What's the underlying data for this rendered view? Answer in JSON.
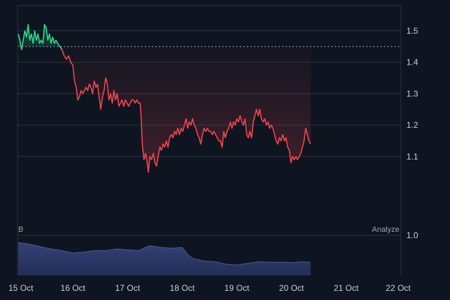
{
  "chart_data": {
    "type": "area",
    "x": [
      "15 Oct",
      "16 Oct",
      "17 Oct",
      "18 Oct",
      "19 Oct",
      "20 Oct",
      "21 Oct",
      "22 Oct"
    ],
    "baseline": 1.45,
    "ylim": [
      0.95,
      1.58
    ],
    "y_ticks": [
      "1.5",
      "1.4",
      "1.3",
      "1.2",
      "1.1",
      "1.0"
    ],
    "price": [
      [
        0.0,
        1.49
      ],
      [
        0.03,
        1.47
      ],
      [
        0.06,
        1.44
      ],
      [
        0.09,
        1.47
      ],
      [
        0.12,
        1.5
      ],
      [
        0.15,
        1.48
      ],
      [
        0.18,
        1.52
      ],
      [
        0.21,
        1.47
      ],
      [
        0.24,
        1.49
      ],
      [
        0.27,
        1.46
      ],
      [
        0.3,
        1.5
      ],
      [
        0.33,
        1.47
      ],
      [
        0.36,
        1.49
      ],
      [
        0.39,
        1.46
      ],
      [
        0.42,
        1.47
      ],
      [
        0.45,
        1.46
      ],
      [
        0.48,
        1.52
      ],
      [
        0.51,
        1.51
      ],
      [
        0.54,
        1.47
      ],
      [
        0.57,
        1.49
      ],
      [
        0.6,
        1.46
      ],
      [
        0.63,
        1.48
      ],
      [
        0.66,
        1.46
      ],
      [
        0.69,
        1.47
      ],
      [
        0.72,
        1.46
      ],
      [
        0.76,
        1.45
      ],
      [
        0.8,
        1.44
      ],
      [
        0.84,
        1.42
      ],
      [
        0.88,
        1.41
      ],
      [
        0.92,
        1.42
      ],
      [
        0.96,
        1.4
      ],
      [
        1.0,
        1.39
      ],
      [
        1.03,
        1.34
      ],
      [
        1.06,
        1.32
      ],
      [
        1.09,
        1.28
      ],
      [
        1.12,
        1.29
      ],
      [
        1.15,
        1.31
      ],
      [
        1.18,
        1.3
      ],
      [
        1.21,
        1.31
      ],
      [
        1.24,
        1.32
      ],
      [
        1.27,
        1.31
      ],
      [
        1.3,
        1.33
      ],
      [
        1.33,
        1.32
      ],
      [
        1.36,
        1.3
      ],
      [
        1.39,
        1.34
      ],
      [
        1.42,
        1.32
      ],
      [
        1.45,
        1.33
      ],
      [
        1.48,
        1.29
      ],
      [
        1.51,
        1.25
      ],
      [
        1.54,
        1.29
      ],
      [
        1.57,
        1.31
      ],
      [
        1.6,
        1.35
      ],
      [
        1.63,
        1.33
      ],
      [
        1.66,
        1.28
      ],
      [
        1.69,
        1.3
      ],
      [
        1.72,
        1.27
      ],
      [
        1.75,
        1.31
      ],
      [
        1.78,
        1.28
      ],
      [
        1.81,
        1.3
      ],
      [
        1.84,
        1.26
      ],
      [
        1.87,
        1.27
      ],
      [
        1.9,
        1.28
      ],
      [
        1.93,
        1.26
      ],
      [
        1.96,
        1.28
      ],
      [
        1.99,
        1.27
      ],
      [
        2.02,
        1.26
      ],
      [
        2.05,
        1.27
      ],
      [
        2.08,
        1.28
      ],
      [
        2.11,
        1.28
      ],
      [
        2.14,
        1.27
      ],
      [
        2.17,
        1.28
      ],
      [
        2.2,
        1.27
      ],
      [
        2.23,
        1.27
      ],
      [
        2.25,
        1.22
      ],
      [
        2.27,
        1.14
      ],
      [
        2.3,
        1.09
      ],
      [
        2.33,
        1.11
      ],
      [
        2.36,
        1.08
      ],
      [
        2.38,
        1.05
      ],
      [
        2.41,
        1.1
      ],
      [
        2.44,
        1.09
      ],
      [
        2.47,
        1.11
      ],
      [
        2.5,
        1.08
      ],
      [
        2.53,
        1.07
      ],
      [
        2.56,
        1.1
      ],
      [
        2.59,
        1.13
      ],
      [
        2.62,
        1.12
      ],
      [
        2.65,
        1.14
      ],
      [
        2.68,
        1.13
      ],
      [
        2.71,
        1.15
      ],
      [
        2.74,
        1.13
      ],
      [
        2.77,
        1.16
      ],
      [
        2.8,
        1.17
      ],
      [
        2.83,
        1.16
      ],
      [
        2.86,
        1.18
      ],
      [
        2.89,
        1.17
      ],
      [
        2.92,
        1.19
      ],
      [
        2.95,
        1.17
      ],
      [
        2.98,
        1.19
      ],
      [
        3.01,
        1.18
      ],
      [
        3.04,
        1.2
      ],
      [
        3.07,
        1.22
      ],
      [
        3.1,
        1.19
      ],
      [
        3.13,
        1.21
      ],
      [
        3.16,
        1.2
      ],
      [
        3.19,
        1.22
      ],
      [
        3.22,
        1.2
      ],
      [
        3.25,
        1.19
      ],
      [
        3.28,
        1.17
      ],
      [
        3.31,
        1.16
      ],
      [
        3.34,
        1.14
      ],
      [
        3.37,
        1.17
      ],
      [
        3.4,
        1.19
      ],
      [
        3.43,
        1.18
      ],
      [
        3.46,
        1.19
      ],
      [
        3.49,
        1.18
      ],
      [
        3.52,
        1.18
      ],
      [
        3.55,
        1.17
      ],
      [
        3.58,
        1.18
      ],
      [
        3.61,
        1.17
      ],
      [
        3.64,
        1.16
      ],
      [
        3.67,
        1.15
      ],
      [
        3.7,
        1.15
      ],
      [
        3.73,
        1.13
      ],
      [
        3.76,
        1.18
      ],
      [
        3.79,
        1.16
      ],
      [
        3.82,
        1.18
      ],
      [
        3.85,
        1.19
      ],
      [
        3.88,
        1.21
      ],
      [
        3.91,
        1.19
      ],
      [
        3.94,
        1.21
      ],
      [
        3.97,
        1.2
      ],
      [
        4.0,
        1.22
      ],
      [
        4.03,
        1.21
      ],
      [
        4.06,
        1.23
      ],
      [
        4.09,
        1.21
      ],
      [
        4.12,
        1.2
      ],
      [
        4.15,
        1.22
      ],
      [
        4.18,
        1.17
      ],
      [
        4.21,
        1.16
      ],
      [
        4.24,
        1.18
      ],
      [
        4.27,
        1.16
      ],
      [
        4.3,
        1.21
      ],
      [
        4.33,
        1.23
      ],
      [
        4.36,
        1.25
      ],
      [
        4.39,
        1.23
      ],
      [
        4.42,
        1.25
      ],
      [
        4.45,
        1.22
      ],
      [
        4.48,
        1.21
      ],
      [
        4.51,
        1.22
      ],
      [
        4.54,
        1.2
      ],
      [
        4.57,
        1.21
      ],
      [
        4.6,
        1.19
      ],
      [
        4.63,
        1.2
      ],
      [
        4.66,
        1.19
      ],
      [
        4.69,
        1.17
      ],
      [
        4.72,
        1.15
      ],
      [
        4.75,
        1.14
      ],
      [
        4.78,
        1.16
      ],
      [
        4.81,
        1.15
      ],
      [
        4.84,
        1.17
      ],
      [
        4.87,
        1.15
      ],
      [
        4.9,
        1.16
      ],
      [
        4.93,
        1.13
      ],
      [
        4.96,
        1.12
      ],
      [
        4.99,
        1.08
      ],
      [
        5.02,
        1.1
      ],
      [
        5.05,
        1.09
      ],
      [
        5.08,
        1.1
      ],
      [
        5.11,
        1.09
      ],
      [
        5.14,
        1.1
      ],
      [
        5.17,
        1.11
      ],
      [
        5.2,
        1.13
      ],
      [
        5.23,
        1.15
      ],
      [
        5.26,
        1.19
      ],
      [
        5.29,
        1.17
      ],
      [
        5.32,
        1.15
      ],
      [
        5.35,
        1.14
      ]
    ],
    "volume": [
      [
        0.0,
        0.82
      ],
      [
        0.2,
        0.78
      ],
      [
        0.4,
        0.72
      ],
      [
        0.6,
        0.66
      ],
      [
        0.8,
        0.62
      ],
      [
        1.0,
        0.56
      ],
      [
        1.2,
        0.58
      ],
      [
        1.4,
        0.62
      ],
      [
        1.6,
        0.62
      ],
      [
        1.8,
        0.66
      ],
      [
        2.0,
        0.64
      ],
      [
        2.2,
        0.62
      ],
      [
        2.4,
        0.74
      ],
      [
        2.6,
        0.7
      ],
      [
        2.8,
        0.68
      ],
      [
        3.0,
        0.7
      ],
      [
        3.1,
        0.52
      ],
      [
        3.2,
        0.42
      ],
      [
        3.4,
        0.36
      ],
      [
        3.6,
        0.34
      ],
      [
        3.8,
        0.28
      ],
      [
        4.0,
        0.26
      ],
      [
        4.2,
        0.3
      ],
      [
        4.4,
        0.34
      ],
      [
        4.6,
        0.33
      ],
      [
        4.8,
        0.33
      ],
      [
        5.0,
        0.32
      ],
      [
        5.2,
        0.34
      ],
      [
        5.35,
        0.33
      ]
    ],
    "volume_label": "B",
    "analyze_label": "Analyze",
    "colors": {
      "background": "#0f1520",
      "grid": "#2a3140",
      "up_line": "#2bd98b",
      "down_line": "#f2444e",
      "baseline": "#c9ced8",
      "volume_fill": "#2c3a66"
    }
  }
}
